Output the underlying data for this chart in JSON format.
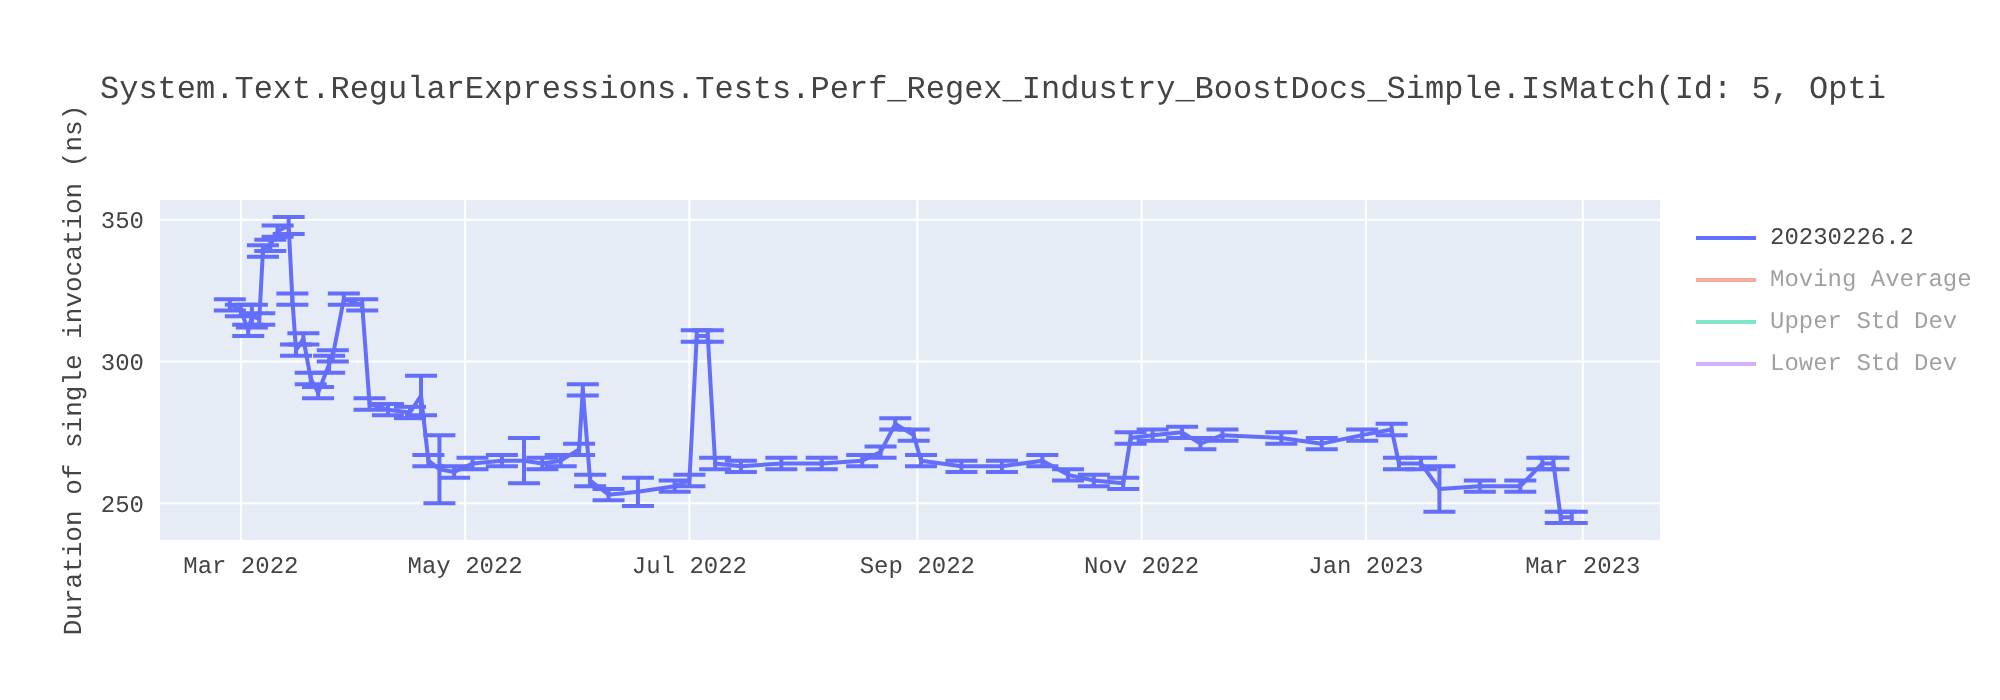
{
  "chart_data": {
    "type": "line",
    "title": "System.Text.RegularExpressions.Tests.Perf_Regex_Industry_BoostDocs_Simple.IsMatch(Id: 5, Opti",
    "ylabel": "Duration of single invocation (ns)",
    "x": [
      "2022-02-26",
      "2022-03-01",
      "2022-03-03",
      "2022-03-04",
      "2022-03-06",
      "2022-03-07",
      "2022-03-09",
      "2022-03-11",
      "2022-03-14",
      "2022-03-15",
      "2022-03-16",
      "2022-03-18",
      "2022-03-20",
      "2022-03-22",
      "2022-03-25",
      "2022-03-26",
      "2022-03-29",
      "2022-04-03",
      "2022-04-05",
      "2022-04-10",
      "2022-04-16",
      "2022-04-19",
      "2022-04-21",
      "2022-04-24",
      "2022-04-28",
      "2022-05-03",
      "2022-05-11",
      "2022-05-17",
      "2022-05-22",
      "2022-05-27",
      "2022-06-01",
      "2022-06-02",
      "2022-06-04",
      "2022-06-09",
      "2022-06-17",
      "2022-06-27",
      "2022-07-01",
      "2022-07-03",
      "2022-07-06",
      "2022-07-08",
      "2022-07-15",
      "2022-07-26",
      "2022-08-06",
      "2022-08-17",
      "2022-08-22",
      "2022-08-26",
      "2022-08-31",
      "2022-09-02",
      "2022-09-13",
      "2022-09-24",
      "2022-10-05",
      "2022-10-12",
      "2022-10-19",
      "2022-10-27",
      "2022-10-29",
      "2022-11-04",
      "2022-11-12",
      "2022-11-17",
      "2022-11-23",
      "2022-12-09",
      "2022-12-20",
      "2022-12-31",
      "2023-01-08",
      "2023-01-10",
      "2023-01-16",
      "2023-01-21",
      "2023-02-01",
      "2023-02-12",
      "2023-02-18",
      "2023-02-21",
      "2023-02-23",
      "2023-02-26"
    ],
    "series": [
      {
        "name": "20230226.2",
        "color": "#636efa",
        "values": [
          320,
          318,
          311,
          316,
          315,
          339,
          341,
          346,
          348,
          322,
          304,
          308,
          294,
          289,
          299,
          302,
          322,
          320,
          285,
          283,
          282,
          288,
          265,
          262,
          261,
          264,
          265,
          265,
          264,
          265,
          269,
          290,
          258,
          253,
          254,
          256,
          258,
          309,
          309,
          264,
          263,
          264,
          264,
          265,
          268,
          278,
          274,
          265,
          263,
          263,
          265,
          260,
          258,
          257,
          273,
          274,
          275,
          271,
          274,
          273,
          271,
          274,
          276,
          264,
          264,
          255,
          256,
          256,
          264,
          264,
          245,
          245
        ],
        "errors": [
          2,
          2,
          2,
          4,
          2,
          2,
          2,
          2,
          3,
          2,
          2,
          2,
          2,
          2,
          3,
          2,
          2,
          2,
          2,
          2,
          2,
          7,
          2,
          12,
          2,
          2,
          2,
          8,
          2,
          2,
          2,
          2,
          2,
          2,
          5,
          2,
          2,
          2,
          2,
          2,
          2,
          2,
          2,
          2,
          2,
          2,
          2,
          2,
          2,
          2,
          2,
          2,
          2,
          2,
          2,
          2,
          2,
          2,
          2,
          2,
          2,
          2,
          2,
          2,
          2,
          8,
          2,
          2,
          2,
          2,
          2,
          2
        ]
      },
      {
        "name": "Moving Average",
        "color": "#ef553b",
        "values": [
          null,
          null,
          null,
          null,
          null,
          null,
          null,
          null,
          null,
          null,
          null,
          null,
          null,
          null,
          null,
          null,
          null,
          null,
          null,
          null,
          null,
          null,
          null,
          null,
          null,
          null,
          null,
          null,
          null,
          null,
          null,
          null,
          null,
          null,
          null,
          null,
          null,
          null,
          null,
          null,
          null,
          null,
          null,
          null,
          null,
          null,
          null,
          null,
          null,
          null,
          null,
          null,
          null,
          null,
          null,
          null,
          null,
          null,
          null,
          null,
          null,
          null,
          null,
          null,
          null,
          null,
          null,
          null,
          null,
          null,
          null,
          null
        ]
      },
      {
        "name": "Upper Std Dev",
        "color": "#00cc96",
        "values": [
          null,
          null,
          null,
          null,
          null,
          null,
          null,
          null,
          null,
          null,
          null,
          null,
          null,
          null,
          null,
          null,
          null,
          null,
          null,
          null,
          null,
          null,
          null,
          null,
          null,
          null,
          null,
          null,
          null,
          null,
          null,
          null,
          null,
          null,
          null,
          null,
          null,
          null,
          null,
          null,
          null,
          null,
          null,
          null,
          null,
          null,
          null,
          null,
          null,
          null,
          null,
          null,
          null,
          null,
          null,
          null,
          null,
          null,
          null,
          null,
          null,
          null,
          null,
          null,
          null,
          null,
          null,
          null,
          null,
          null,
          null,
          null
        ]
      },
      {
        "name": "Lower Std Dev",
        "color": "#ab63fa",
        "values": [
          null,
          null,
          null,
          null,
          null,
          null,
          null,
          null,
          null,
          null,
          null,
          null,
          null,
          null,
          null,
          null,
          null,
          null,
          null,
          null,
          null,
          null,
          null,
          null,
          null,
          null,
          null,
          null,
          null,
          null,
          null,
          null,
          null,
          null,
          null,
          null,
          null,
          null,
          null,
          null,
          null,
          null,
          null,
          null,
          null,
          null,
          null,
          null,
          null,
          null,
          null,
          null,
          null,
          null,
          null,
          null,
          null,
          null,
          null,
          null,
          null,
          null,
          null,
          null,
          null,
          null,
          null,
          null,
          null,
          null,
          null,
          null
        ]
      }
    ],
    "xlim": [
      "2022-02-07",
      "2023-03-22"
    ],
    "xticks": [
      {
        "value": "2022-03-01",
        "label": "Mar 2022"
      },
      {
        "value": "2022-05-01",
        "label": "May 2022"
      },
      {
        "value": "2022-07-01",
        "label": "Jul 2022"
      },
      {
        "value": "2022-09-01",
        "label": "Sep 2022"
      },
      {
        "value": "2022-11-01",
        "label": "Nov 2022"
      },
      {
        "value": "2023-01-01",
        "label": "Jan 2023"
      },
      {
        "value": "2023-03-01",
        "label": "Mar 2023"
      }
    ],
    "ylim": [
      237,
      357
    ],
    "yticks": [
      250,
      300,
      350
    ],
    "grid": true,
    "legend": "top right",
    "marker": "none",
    "line_style": "solid"
  }
}
